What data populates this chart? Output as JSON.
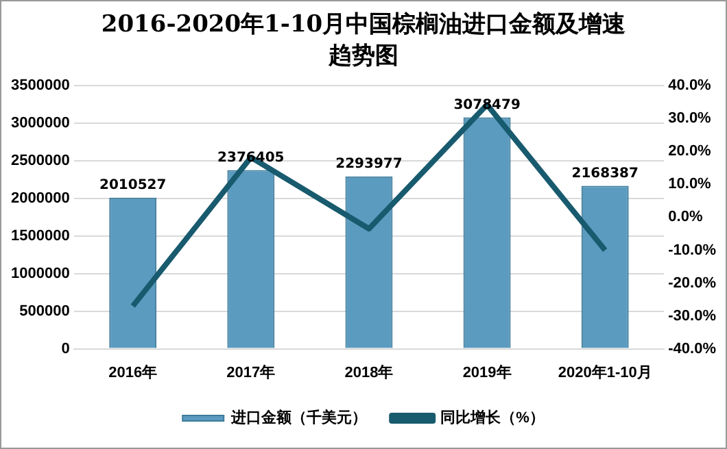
{
  "chart_data": {
    "type": "bar",
    "title": "2016-2020年1-10月中国棕榈油进口金额及增速趋势图",
    "categories": [
      "2016年",
      "2017年",
      "2018年",
      "2019年",
      "2020年1-10月"
    ],
    "series": [
      {
        "name": "进口金额（千美元）",
        "color": "#5b9bbf",
        "values": [
          2010527,
          2376405,
          2293977,
          3078479,
          2168387
        ],
        "value_labels": [
          "2010527",
          "2376405",
          "2293977",
          "3078479",
          "2168387"
        ]
      },
      {
        "name": "同比增长（%）",
        "type": "line",
        "axis": "y2",
        "color": "#185a6e",
        "values": [
          -27,
          18.2,
          -3.5,
          34.2,
          -10
        ]
      }
    ],
    "ylim": [
      0,
      3500000
    ],
    "yticks": [
      0,
      500000,
      1000000,
      1500000,
      2000000,
      2500000,
      3000000,
      3500000
    ],
    "y2lim": [
      -40,
      40
    ],
    "y2ticks": [
      {
        "value": -40,
        "label": "-40.0%"
      },
      {
        "value": -30,
        "label": "-30.0%"
      },
      {
        "value": -20,
        "label": "-20.0%"
      },
      {
        "value": -10,
        "label": "-10.0%"
      },
      {
        "value": 0,
        "label": "0.0%"
      },
      {
        "value": 10,
        "label": "10.0%"
      },
      {
        "value": 20,
        "label": "20.0%"
      },
      {
        "value": 30,
        "label": "30.0%"
      },
      {
        "value": 40,
        "label": "40.0%"
      }
    ],
    "grid": "y",
    "legend": "bottom",
    "marker": "none",
    "line_style": "solid"
  }
}
